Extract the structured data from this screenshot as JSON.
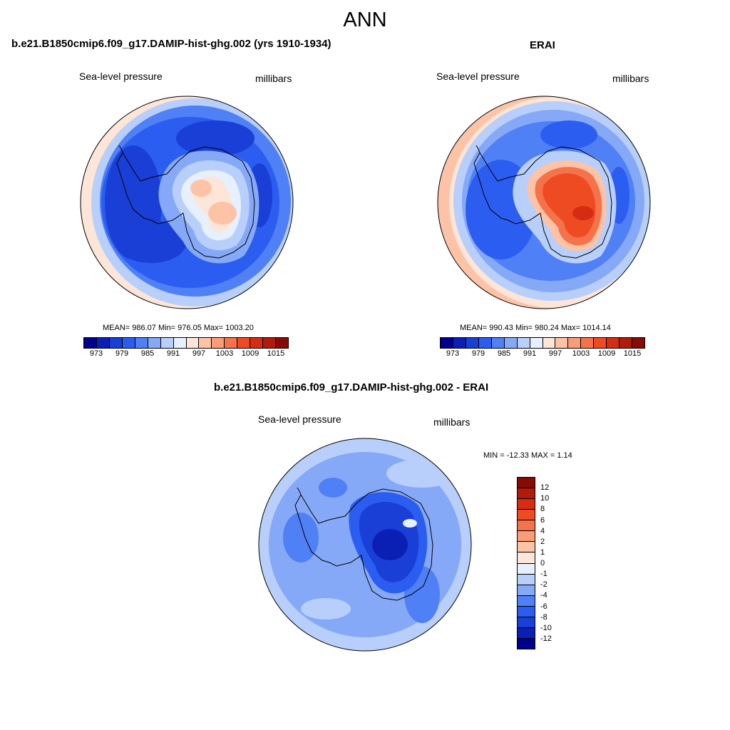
{
  "title": "ANN",
  "panels": {
    "model": {
      "title": "b.e21.B1850cmip6.f09_g17.DAMIP-hist-ghg.002 (yrs 1910-1934)",
      "left_label": "Sea-level pressure",
      "right_label": "millibars",
      "stats": "MEAN= 986.07  Min= 976.05  Max= 1003.20"
    },
    "obs": {
      "title": "ERAI",
      "left_label": "Sea-level pressure",
      "right_label": "millibars",
      "stats": "MEAN= 990.43  Min= 980.24  Max= 1014.14"
    },
    "diff": {
      "title": "b.e21.B1850cmip6.f09_g17.DAMIP-hist-ghg.002 - ERAI",
      "left_label": "Sea-level pressure",
      "right_label": "millibars",
      "stats": "MIN = -12.33 MAX =   1.14"
    }
  },
  "colorbar_abs": {
    "colors": [
      "#00008c",
      "#0a20b4",
      "#1a3fd6",
      "#2b5ef0",
      "#4f80f5",
      "#86a9f7",
      "#b8cffb",
      "#e6f0ff",
      "#fde6d8",
      "#fcc3a7",
      "#fa9c75",
      "#f5734b",
      "#ef4b23",
      "#d62d12",
      "#b11b0c",
      "#870a05"
    ],
    "tick_labels": [
      "973",
      "979",
      "985",
      "991",
      "997",
      "1003",
      "1009",
      "1015"
    ]
  },
  "colorbar_diff": {
    "colors_top_to_bottom": [
      "#870a05",
      "#b11b0c",
      "#d62d12",
      "#ef4b23",
      "#f5734b",
      "#fa9c75",
      "#fcc3a7",
      "#fde6d8",
      "#e6f0ff",
      "#b8cffb",
      "#86a9f7",
      "#4f80f5",
      "#2b5ef0",
      "#1a3fd6",
      "#0a20b4",
      "#00008c"
    ],
    "tick_labels": [
      "12",
      "10",
      "8",
      "6",
      "4",
      "2",
      "1",
      "0",
      "-1",
      "-2",
      "-4",
      "-6",
      "-8",
      "-10",
      "-12"
    ]
  }
}
